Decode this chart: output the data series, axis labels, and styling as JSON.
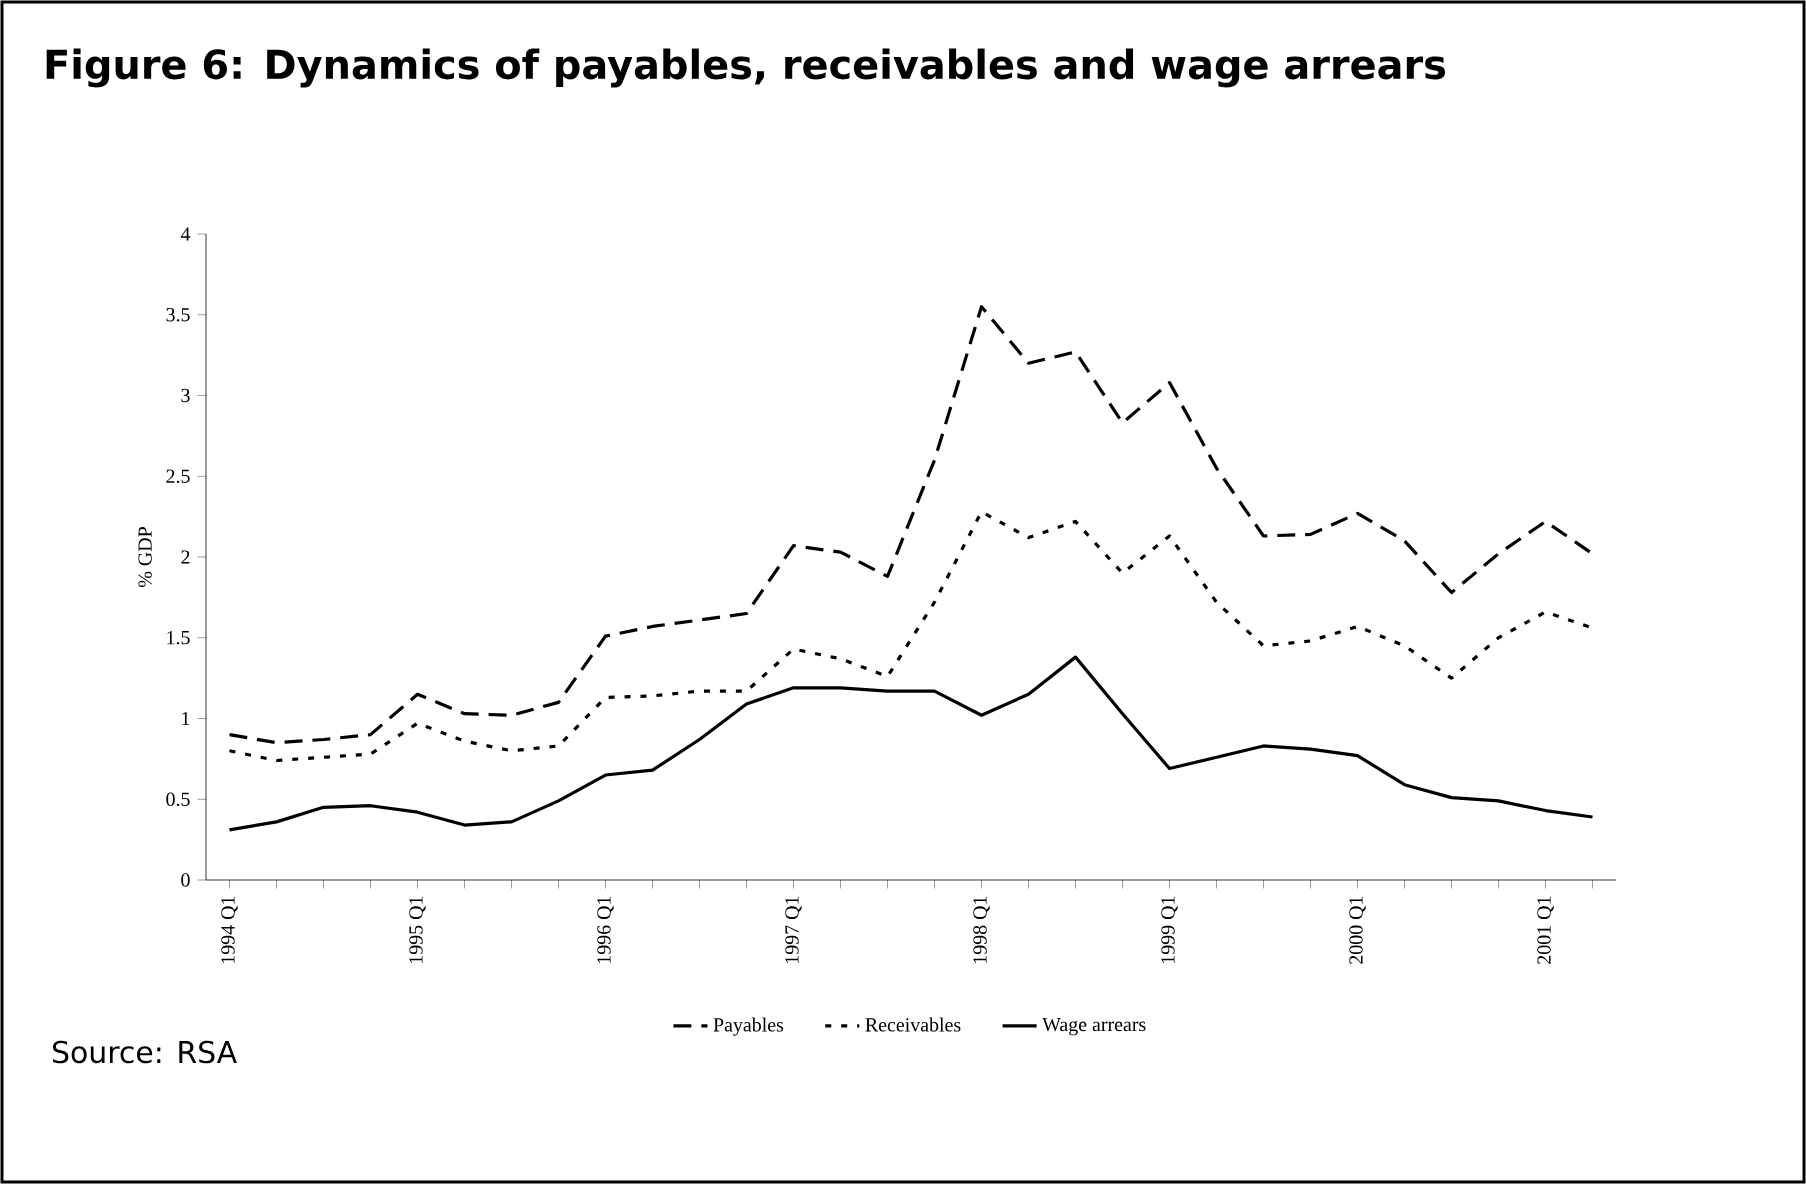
{
  "chart_data": {
    "type": "line",
    "title": "Figure 6: Dynamics of payables, receivables and wage arrears",
    "ylabel": "% GDP",
    "annotations": [
      "Source: RSA"
    ],
    "categories": [
      "1994 Q1",
      null,
      null,
      null,
      "1995 Q1",
      null,
      null,
      null,
      "1996 Q1",
      null,
      null,
      null,
      "1997 Q1",
      null,
      null,
      null,
      "1998 Q1",
      null,
      null,
      null,
      "1999 Q1",
      null,
      null,
      null,
      "2000 Q1",
      null,
      null,
      null,
      "2001 Q1",
      null
    ],
    "series": [
      {
        "name": "Payables",
        "color": "#000000",
        "line_style": "dashed",
        "values": [
          0.9,
          0.85,
          0.87,
          0.9,
          1.15,
          1.03,
          1.02,
          1.1,
          1.51,
          1.57,
          1.61,
          1.65,
          2.07,
          2.03,
          1.88,
          2.6,
          3.55,
          3.2,
          3.27,
          2.83,
          3.08,
          2.55,
          2.13,
          2.14,
          2.27,
          2.1,
          1.78,
          2.02,
          2.22,
          2.02
        ]
      },
      {
        "name": "Receivables",
        "color": "#000000",
        "line_style": "dotted",
        "values": [
          0.8,
          0.74,
          0.76,
          0.78,
          0.97,
          0.86,
          0.8,
          0.83,
          1.13,
          1.14,
          1.17,
          1.17,
          1.43,
          1.37,
          1.26,
          1.72,
          2.28,
          2.12,
          2.22,
          1.9,
          2.13,
          1.72,
          1.45,
          1.48,
          1.57,
          1.45,
          1.25,
          1.5,
          1.66,
          1.56
        ]
      },
      {
        "name": "Wage arrears",
        "color": "#000000",
        "line_style": "solid",
        "values": [
          0.31,
          0.36,
          0.45,
          0.46,
          0.42,
          0.34,
          0.36,
          0.49,
          0.65,
          0.68,
          0.87,
          1.09,
          1.19,
          1.19,
          1.17,
          1.17,
          1.02,
          1.15,
          1.38,
          1.03,
          0.69,
          0.76,
          0.83,
          0.81,
          0.77,
          0.59,
          0.51,
          0.49,
          0.43,
          0.39
        ]
      }
    ],
    "ylim": [
      0,
      4
    ],
    "yticks": [
      0,
      0.5,
      1,
      1.5,
      2,
      2.5,
      3,
      3.5,
      4
    ],
    "grid": false,
    "legend": "bottom",
    "marker": "none"
  }
}
